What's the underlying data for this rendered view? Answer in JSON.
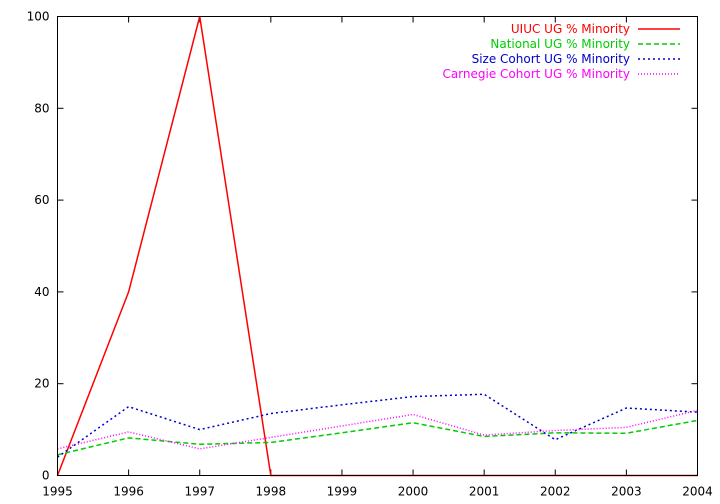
{
  "chart_data": {
    "type": "line",
    "x": [
      1995,
      1996,
      1997,
      1998,
      1999,
      2000,
      2001,
      2002,
      2003,
      2004
    ],
    "xlim": [
      1995,
      2004
    ],
    "ylim": [
      0,
      100
    ],
    "xticks": [
      "1995",
      "1996",
      "1997",
      "1998",
      "1999",
      "2000",
      "2001",
      "2002",
      "2003",
      "2004"
    ],
    "yticks": [
      "0",
      "20",
      "40",
      "60",
      "80",
      "100"
    ],
    "grid": false,
    "legend_position": "top-right",
    "series": [
      {
        "name": "UIUC UG % Minority",
        "color": "#ff0000",
        "dash": "solid",
        "values": [
          0,
          40,
          100,
          0,
          0,
          0,
          0,
          0,
          0,
          0
        ]
      },
      {
        "name": "National UG % Minority",
        "color": "#00cc00",
        "dash": "dashed",
        "values": [
          4.5,
          8.2,
          6.8,
          7.2,
          9.3,
          11.5,
          8.5,
          9.3,
          9.2,
          12.0
        ]
      },
      {
        "name": "Size Cohort UG % Minority",
        "color": "#0000cc",
        "dash": "dotted",
        "values": [
          4.0,
          15.0,
          10.0,
          13.5,
          15.4,
          17.2,
          17.7,
          7.8,
          14.7,
          13.8
        ]
      },
      {
        "name": "Carnegie Cohort UG % Minority",
        "color": "#ff00ff",
        "dash": "finedot",
        "values": [
          5.8,
          9.5,
          5.8,
          8.3,
          10.8,
          13.3,
          8.8,
          9.8,
          10.5,
          14.2
        ]
      }
    ]
  }
}
